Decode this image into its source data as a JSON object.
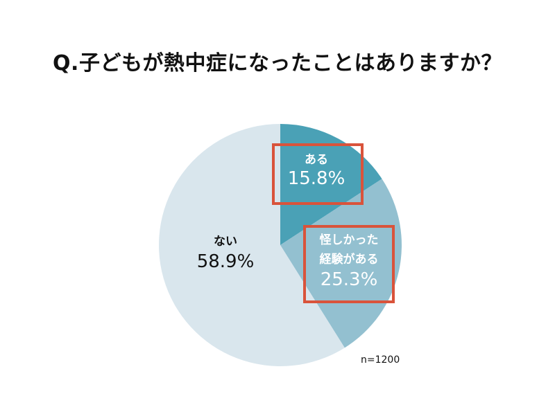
{
  "chart_data": {
    "type": "pie",
    "title": "Q.子どもが熱中症になったことはありますか？",
    "slices": [
      {
        "label_lines": [
          "ある"
        ],
        "value": 15.8,
        "value_label": "15.8%",
        "color": "#4aa1b6",
        "text_color": "#ffffff",
        "highlighted": true
      },
      {
        "label_lines": [
          "怪しかった",
          "経験がある"
        ],
        "value": 25.3,
        "value_label": "25.3%",
        "color": "#93c0d0",
        "text_color": "#ffffff",
        "highlighted": true
      },
      {
        "label_lines": [
          "ない"
        ],
        "value": 58.9,
        "value_label": "58.9%",
        "color": "#d9e6ed",
        "text_color": "#111111",
        "highlighted": false
      }
    ],
    "note": "n=1200",
    "highlight_color": "#d9533b"
  }
}
